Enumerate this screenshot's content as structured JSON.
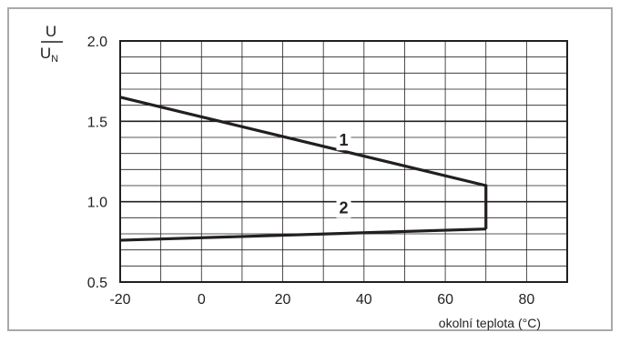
{
  "chart_data": {
    "type": "line",
    "xlabel": "okolní teplota (°C)",
    "ylabel": {
      "numerator": "U",
      "denominator": "U",
      "denominator_sub": "N"
    },
    "xlim": [
      -20,
      90
    ],
    "ylim": [
      0.5,
      2.0
    ],
    "x_ticks": [
      -20,
      0,
      20,
      40,
      60,
      80
    ],
    "x_tick_labels": [
      "-20",
      "0",
      "20",
      "40",
      "60",
      "80"
    ],
    "y_ticks": [
      0.5,
      1.0,
      1.5,
      2.0
    ],
    "y_tick_labels": [
      "0.5",
      "1.0",
      "1.5",
      "2.0"
    ],
    "grid": true,
    "minor_grid": {
      "x_step": 10,
      "y_step": 0.1
    },
    "colors": {
      "line": "#231f20",
      "grid": "#231f20",
      "frame": "#a7a9ac"
    },
    "series": [
      {
        "name": "1",
        "x": [
          -20,
          70,
          70
        ],
        "y": [
          1.65,
          1.1,
          0.83
        ]
      },
      {
        "name": "2",
        "x": [
          -20,
          70
        ],
        "y": [
          0.76,
          0.83
        ]
      }
    ]
  }
}
